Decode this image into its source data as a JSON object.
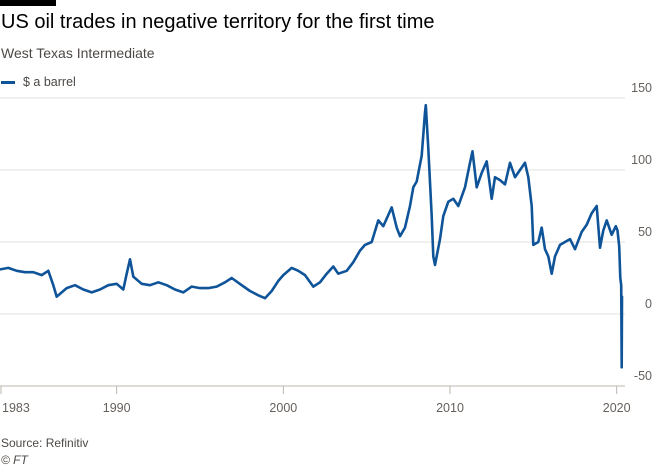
{
  "header": {
    "title": "US oil trades in negative territory for the first time",
    "subtitle": "West Texas Intermediate"
  },
  "legend": {
    "label": "$ a barrel",
    "color": "#0f5499"
  },
  "footer": {
    "source": "Source: Refinitiv",
    "credit": "© FT"
  },
  "chart_data": {
    "type": "line",
    "title": "US oil trades in negative territory for the first time",
    "subtitle": "West Texas Intermediate",
    "xlabel": "",
    "ylabel": "",
    "xlim": [
      1983,
      2020.5
    ],
    "ylim": [
      -50,
      150
    ],
    "x_ticks": [
      1983,
      1990,
      2000,
      2010,
      2020
    ],
    "x_tick_labels": [
      "1983",
      "1990",
      "2000",
      "2010",
      "2020"
    ],
    "y_ticks": [
      -50,
      0,
      50,
      100,
      150
    ],
    "y_tick_labels": [
      "-50",
      "0",
      "50",
      "100",
      "150"
    ],
    "grid": true,
    "legend_position": "top-left",
    "colors": {
      "series": "#0f5499",
      "grid": "#e6e1dc",
      "axis": "#bdb5ae"
    },
    "series": [
      {
        "name": "$ a barrel",
        "points": [
          [
            1983.0,
            31
          ],
          [
            1983.5,
            32
          ],
          [
            1984.0,
            30
          ],
          [
            1984.5,
            29
          ],
          [
            1985.0,
            29
          ],
          [
            1985.5,
            27
          ],
          [
            1985.9,
            30
          ],
          [
            1986.2,
            20
          ],
          [
            1986.4,
            12
          ],
          [
            1986.7,
            15
          ],
          [
            1987.0,
            18
          ],
          [
            1987.5,
            20
          ],
          [
            1988.0,
            17
          ],
          [
            1988.5,
            15
          ],
          [
            1989.0,
            17
          ],
          [
            1989.5,
            20
          ],
          [
            1990.0,
            21
          ],
          [
            1990.4,
            17
          ],
          [
            1990.6,
            28
          ],
          [
            1990.8,
            38
          ],
          [
            1991.0,
            26
          ],
          [
            1991.5,
            21
          ],
          [
            1992.0,
            20
          ],
          [
            1992.5,
            22
          ],
          [
            1993.0,
            20
          ],
          [
            1993.5,
            17
          ],
          [
            1994.0,
            15
          ],
          [
            1994.5,
            19
          ],
          [
            1995.0,
            18
          ],
          [
            1995.5,
            18
          ],
          [
            1996.0,
            19
          ],
          [
            1996.5,
            22
          ],
          [
            1996.9,
            25
          ],
          [
            1997.5,
            20
          ],
          [
            1998.0,
            16
          ],
          [
            1998.5,
            13
          ],
          [
            1998.9,
            11
          ],
          [
            1999.3,
            16
          ],
          [
            1999.7,
            23
          ],
          [
            2000.0,
            27
          ],
          [
            2000.5,
            32
          ],
          [
            2000.9,
            30
          ],
          [
            2001.3,
            27
          ],
          [
            2001.8,
            19
          ],
          [
            2002.2,
            22
          ],
          [
            2002.6,
            28
          ],
          [
            2003.0,
            33
          ],
          [
            2003.3,
            28
          ],
          [
            2003.8,
            30
          ],
          [
            2004.2,
            36
          ],
          [
            2004.6,
            44
          ],
          [
            2004.9,
            48
          ],
          [
            2005.3,
            50
          ],
          [
            2005.7,
            65
          ],
          [
            2006.0,
            61
          ],
          [
            2006.5,
            74
          ],
          [
            2006.8,
            60
          ],
          [
            2007.0,
            54
          ],
          [
            2007.3,
            60
          ],
          [
            2007.6,
            75
          ],
          [
            2007.8,
            88
          ],
          [
            2008.0,
            92
          ],
          [
            2008.3,
            110
          ],
          [
            2008.5,
            140
          ],
          [
            2008.55,
            145
          ],
          [
            2008.7,
            115
          ],
          [
            2008.9,
            68
          ],
          [
            2009.0,
            40
          ],
          [
            2009.1,
            34
          ],
          [
            2009.4,
            52
          ],
          [
            2009.6,
            68
          ],
          [
            2009.9,
            78
          ],
          [
            2010.2,
            80
          ],
          [
            2010.5,
            75
          ],
          [
            2010.9,
            88
          ],
          [
            2011.2,
            105
          ],
          [
            2011.35,
            113
          ],
          [
            2011.6,
            88
          ],
          [
            2011.9,
            98
          ],
          [
            2012.2,
            106
          ],
          [
            2012.5,
            80
          ],
          [
            2012.7,
            95
          ],
          [
            2013.0,
            93
          ],
          [
            2013.3,
            90
          ],
          [
            2013.6,
            105
          ],
          [
            2013.9,
            95
          ],
          [
            2014.2,
            100
          ],
          [
            2014.5,
            105
          ],
          [
            2014.7,
            95
          ],
          [
            2014.9,
            75
          ],
          [
            2015.0,
            48
          ],
          [
            2015.3,
            50
          ],
          [
            2015.5,
            60
          ],
          [
            2015.7,
            45
          ],
          [
            2015.9,
            40
          ],
          [
            2016.1,
            28
          ],
          [
            2016.3,
            40
          ],
          [
            2016.6,
            48
          ],
          [
            2016.9,
            50
          ],
          [
            2017.2,
            52
          ],
          [
            2017.5,
            45
          ],
          [
            2017.9,
            57
          ],
          [
            2018.2,
            62
          ],
          [
            2018.5,
            70
          ],
          [
            2018.8,
            75
          ],
          [
            2019.0,
            46
          ],
          [
            2019.2,
            58
          ],
          [
            2019.4,
            65
          ],
          [
            2019.7,
            55
          ],
          [
            2019.95,
            61
          ],
          [
            2020.05,
            58
          ],
          [
            2020.15,
            47
          ],
          [
            2020.22,
            25
          ],
          [
            2020.27,
            20
          ],
          [
            2020.3,
            -37
          ],
          [
            2020.32,
            12
          ]
        ]
      }
    ]
  }
}
